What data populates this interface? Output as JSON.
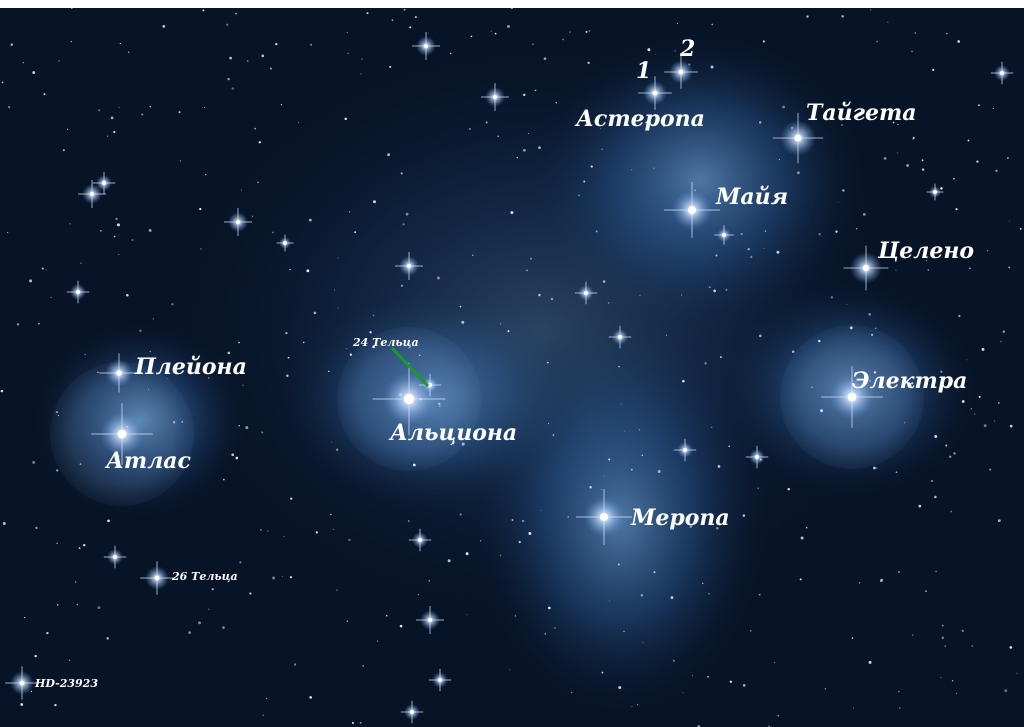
{
  "image": {
    "labels": {
      "asterope_1": "1",
      "asterope_2": "2",
      "asterope": "Астеропа",
      "taygeta": "Тайгета",
      "maia": "Майя",
      "celaeno": "Целено",
      "tau24": "24 Тельца",
      "pleione": "Плейона",
      "alcyone": "Альциона",
      "electra": "Электра",
      "atlas": "Атлас",
      "merope": "Меропа",
      "tau26": "26 Тельца",
      "hd": "HD-23923"
    }
  }
}
